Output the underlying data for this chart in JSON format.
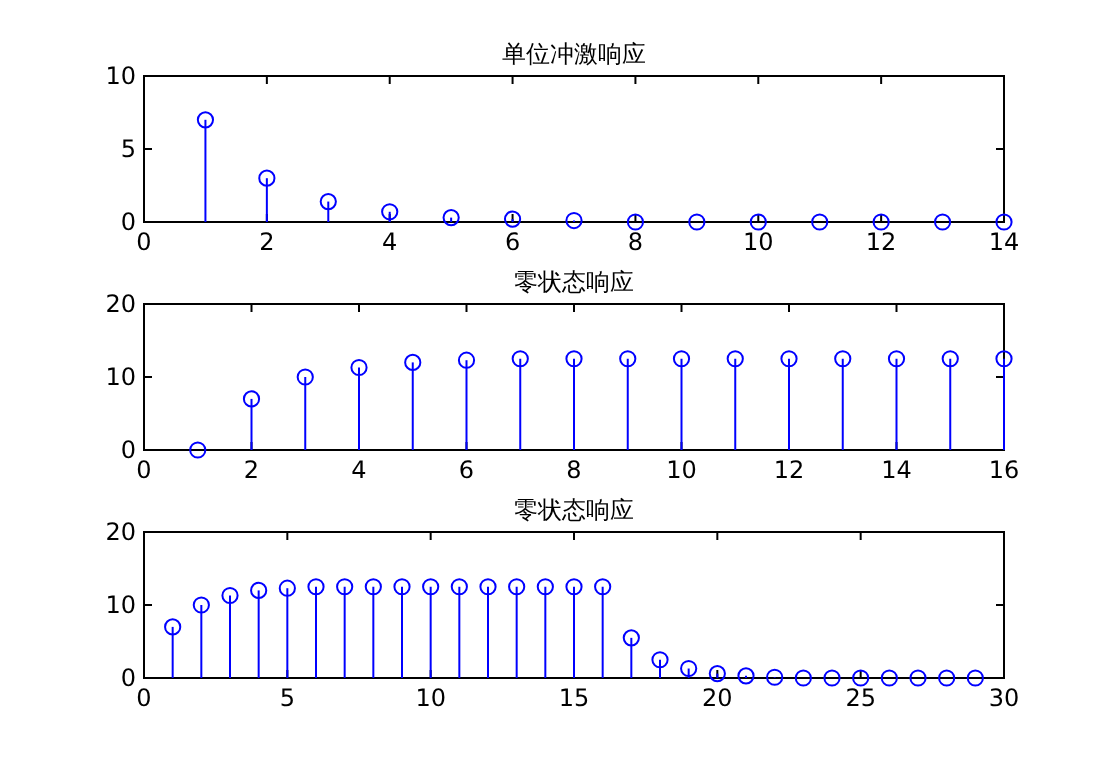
{
  "chart_data": [
    {
      "type": "lollipop",
      "title": "单位冲激响应",
      "color": "#0000ff",
      "marker": "circle",
      "x": [
        1,
        2,
        3,
        4,
        5,
        6,
        7,
        8,
        9,
        10,
        11,
        12,
        13,
        14
      ],
      "values": [
        7,
        3,
        1.4,
        0.7,
        0.3,
        0.2,
        0.1,
        0,
        0,
        0,
        0,
        0,
        0,
        0
      ],
      "xlim": [
        0,
        14
      ],
      "xticks": [
        0,
        2,
        4,
        6,
        8,
        10,
        12,
        14
      ],
      "ylim": [
        0,
        10
      ],
      "yticks": [
        0,
        5,
        10
      ]
    },
    {
      "type": "lollipop",
      "title": "零状态响应",
      "color": "#0000ff",
      "marker": "circle",
      "x": [
        1,
        2,
        3,
        4,
        5,
        6,
        7,
        8,
        9,
        10,
        11,
        12,
        13,
        14,
        15,
        16
      ],
      "values": [
        0,
        7,
        10,
        11.3,
        12,
        12.3,
        12.5,
        12.5,
        12.5,
        12.5,
        12.5,
        12.5,
        12.5,
        12.5,
        12.5,
        12.5
      ],
      "xlim": [
        0,
        16
      ],
      "xticks": [
        0,
        2,
        4,
        6,
        8,
        10,
        12,
        14,
        16
      ],
      "ylim": [
        0,
        20
      ],
      "yticks": [
        0,
        10,
        20
      ]
    },
    {
      "type": "lollipop",
      "title": "零状态响应",
      "color": "#0000ff",
      "marker": "circle",
      "x": [
        1,
        2,
        3,
        4,
        5,
        6,
        7,
        8,
        9,
        10,
        11,
        12,
        13,
        14,
        15,
        16,
        17,
        18,
        19,
        20,
        21,
        22,
        23,
        24,
        25,
        26,
        27,
        28,
        29
      ],
      "values": [
        7,
        10,
        11.3,
        12,
        12.3,
        12.5,
        12.5,
        12.5,
        12.5,
        12.5,
        12.5,
        12.5,
        12.5,
        12.5,
        12.5,
        12.5,
        5.5,
        2.5,
        1.3,
        0.6,
        0.3,
        0.1,
        0,
        0,
        0,
        0,
        0,
        0,
        0
      ],
      "xlim": [
        0,
        30
      ],
      "xticks": [
        0,
        5,
        10,
        15,
        20,
        25,
        30
      ],
      "ylim": [
        0,
        20
      ],
      "yticks": [
        0,
        10,
        20
      ]
    }
  ]
}
